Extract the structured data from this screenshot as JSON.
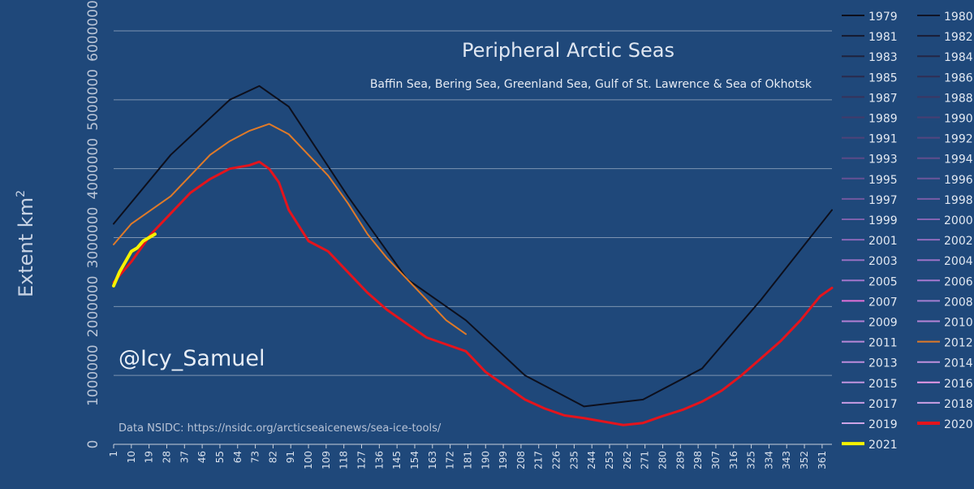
{
  "chart_data": {
    "type": "line",
    "title": "Peripheral Arctic Seas",
    "subtitle": "Baffin Sea, Bering Sea, Greenland Sea, Gulf of St. Lawrence & Sea of Okhotsk",
    "ylabel_text": "Extent km",
    "ylabel_sup": "2",
    "xlabel": "",
    "watermark": "@Icy_Samuel",
    "source": "Data NSIDC: https://nsidc.org/arcticseaicenews/sea-ice-tools/",
    "ylim": [
      0,
      6000000
    ],
    "xlim": [
      1,
      366
    ],
    "yticks": [
      "0",
      "1000000",
      "2000000",
      "3000000",
      "4000000",
      "5000000",
      "6000000"
    ],
    "xticks": [
      "1",
      "10",
      "19",
      "28",
      "37",
      "46",
      "55",
      "64",
      "73",
      "82",
      "91",
      "100",
      "109",
      "118",
      "127",
      "136",
      "145",
      "154",
      "163",
      "172",
      "181",
      "190",
      "199",
      "208",
      "217",
      "226",
      "235",
      "244",
      "253",
      "262",
      "271",
      "280",
      "289",
      "298",
      "307",
      "316",
      "325",
      "334",
      "343",
      "352",
      "361"
    ],
    "grid": true,
    "legend_position": "right",
    "legend": [
      "1979",
      "1980",
      "1981",
      "1982",
      "1983",
      "1984",
      "1985",
      "1986",
      "1987",
      "1988",
      "1989",
      "1990",
      "1991",
      "1992",
      "1993",
      "1994",
      "1995",
      "1996",
      "1997",
      "1998",
      "1999",
      "2000",
      "2001",
      "2002",
      "2003",
      "2004",
      "2005",
      "2006",
      "2007",
      "2008",
      "2009",
      "2010",
      "2011",
      "2012",
      "2013",
      "2014",
      "2015",
      "2016",
      "2017",
      "2018",
      "2019",
      "2020",
      "2021"
    ],
    "series_colors": {
      "1979": "#0d0f1c",
      "1980": "#101426",
      "1981": "#15192e",
      "1982": "#1a1d35",
      "1983": "#1f223d",
      "1984": "#242645",
      "1985": "#2a2a4c",
      "1986": "#302e54",
      "1987": "#36325b",
      "1988": "#3c3663",
      "1989": "#423a6a",
      "1990": "#483e72",
      "1991": "#4e4279",
      "1992": "#544680",
      "1993": "#5a4a87",
      "1994": "#604d8d",
      "1995": "#665194",
      "1996": "#6c559a",
      "1997": "#7259a0",
      "1998": "#785da6",
      "1999": "#7e61ac",
      "2000": "#8464b2",
      "2001": "#8a68b8",
      "2002": "#906cbd",
      "2003": "#9670c2",
      "2004": "#9c73c7",
      "2005": "#a276cc",
      "2006": "#a679d0",
      "2007": "#e070d8",
      "2008": "#a27ed0",
      "2009": "#b27fd4",
      "2010": "#b583d6",
      "2011": "#b887d8",
      "2012": "#e07a28",
      "2013": "#bc8cdb",
      "2014": "#bf90dd",
      "2015": "#c294df",
      "2016": "#e899e8",
      "2017": "#c89ce3",
      "2018": "#cba0e5",
      "2019": "#cda4e7",
      "2020": "#e4141c",
      "2021": "#f6f200"
    },
    "series": [
      {
        "name": "1979",
        "x": [
          1,
          30,
          60,
          75,
          90,
          120,
          150,
          180,
          210,
          240,
          270,
          300,
          330,
          366
        ],
        "values": [
          3200000,
          4200000,
          5000000,
          5200000,
          4900000,
          3600000,
          2400000,
          1800000,
          1000000,
          550000,
          650000,
          1100000,
          2100000,
          3400000
        ]
      },
      {
        "name": "2012",
        "x": [
          1,
          10,
          20,
          30,
          40,
          50,
          60,
          70,
          80,
          90,
          100,
          110,
          120,
          130,
          140,
          150,
          160,
          170,
          180
        ],
        "values": [
          2900000,
          3200000,
          3400000,
          3600000,
          3900000,
          4200000,
          4400000,
          4550000,
          4650000,
          4500000,
          4200000,
          3900000,
          3500000,
          3050000,
          2700000,
          2400000,
          2100000,
          1800000,
          1600000
        ]
      },
      {
        "name": "2020",
        "x": [
          1,
          10,
          20,
          30,
          40,
          50,
          60,
          70,
          75,
          80,
          85,
          90,
          100,
          110,
          120,
          130,
          140,
          150,
          160,
          170,
          180,
          190,
          200,
          210,
          220,
          230,
          240,
          250,
          260,
          270,
          280,
          290,
          300,
          310,
          320,
          330,
          340,
          350,
          360,
          366
        ],
        "values": [
          2350000,
          2650000,
          3050000,
          3350000,
          3650000,
          3850000,
          4000000,
          4050000,
          4100000,
          4000000,
          3800000,
          3400000,
          2950000,
          2800000,
          2500000,
          2200000,
          1950000,
          1750000,
          1550000,
          1450000,
          1350000,
          1050000,
          850000,
          650000,
          520000,
          420000,
          380000,
          330000,
          280000,
          310000,
          410000,
          500000,
          620000,
          780000,
          1000000,
          1250000,
          1500000,
          1800000,
          2150000,
          2270000
        ]
      },
      {
        "name": "2021",
        "x": [
          1,
          4,
          7,
          10,
          13,
          16,
          19,
          22
        ],
        "values": [
          2300000,
          2500000,
          2650000,
          2800000,
          2850000,
          2950000,
          3000000,
          3050000
        ]
      }
    ]
  }
}
